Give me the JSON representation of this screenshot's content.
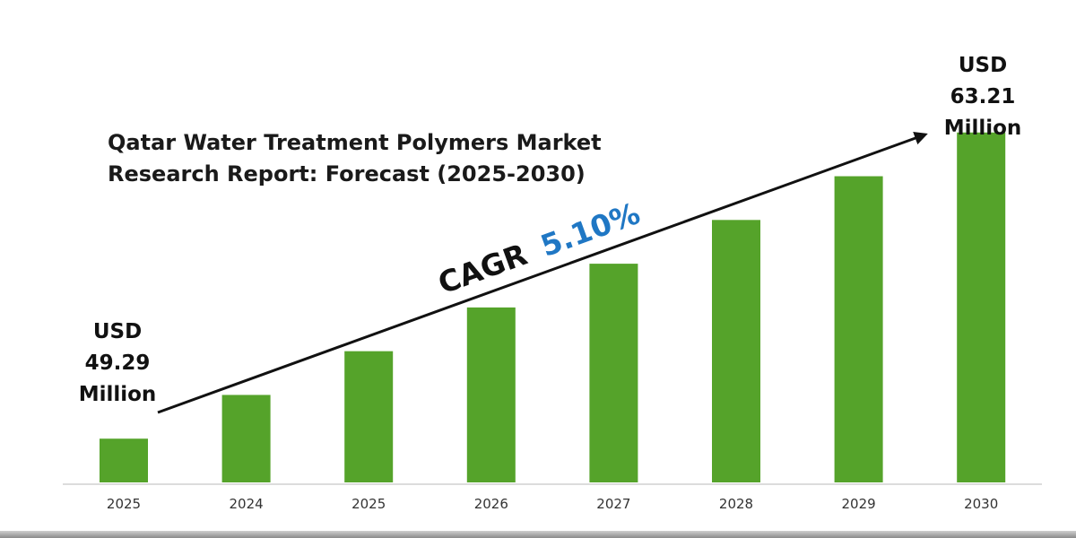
{
  "chart_data": {
    "type": "bar",
    "title": "Qatar Water Treatment Polymers Market Research Report: Forecast (2025-2030)",
    "title_lines": [
      "Qatar Water Treatment Polymers Market",
      "Research Report: Forecast (2025-2030)"
    ],
    "categories": [
      "2025",
      "2024",
      "2025",
      "2026",
      "2027",
      "2028",
      "2029",
      "2030"
    ],
    "values": [
      1,
      2,
      3,
      4,
      5,
      6,
      7,
      8
    ],
    "ylim": [
      0,
      8.2
    ],
    "bar_color": "#55a32a",
    "grid": false,
    "legend": "none",
    "xlabel": "",
    "ylabel": "",
    "start_label": [
      "USD",
      "49.29",
      "Million"
    ],
    "end_label": [
      "USD",
      "63.21",
      "Million"
    ],
    "cagr_label": "CAGR",
    "cagr_value": "5.10%",
    "cagr_value_color": "#1f77c4"
  }
}
